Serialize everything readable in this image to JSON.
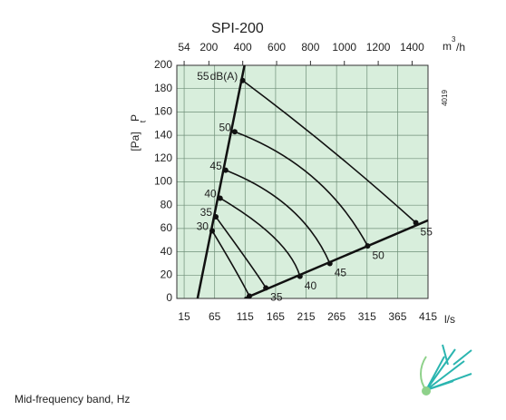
{
  "chart_data": {
    "type": "line",
    "title": "SPI-200",
    "xlabel": "l/s",
    "x2label_main": "m",
    "x2label_sup": "3",
    "x2label_unit": "/h",
    "ylabel_main": "P",
    "ylabel_sub": "t",
    "ylabel_unit": "[Pa]",
    "sound_unit": "dB(A)",
    "code": "4019",
    "footer": "Mid-frequency band, Hz",
    "xlim": [
      3,
      415
    ],
    "xticks": [
      15,
      65,
      115,
      165,
      215,
      265,
      315,
      365,
      415
    ],
    "x2lim": [
      10.8,
      1494
    ],
    "x2ticks": [
      54,
      200,
      400,
      600,
      800,
      1000,
      1200,
      1400
    ],
    "ylim": [
      0,
      200
    ],
    "yticks": [
      0,
      20,
      40,
      60,
      80,
      100,
      120,
      140,
      160,
      180,
      200
    ],
    "grid": true,
    "background": "#d8eedc",
    "color": "#111111",
    "system_lines": [
      {
        "x": [
          37,
          114
        ],
        "y": [
          0,
          200
        ]
      },
      {
        "x": [
          114,
          415
        ],
        "y": [
          0,
          67
        ]
      }
    ],
    "series": [
      {
        "name": "30",
        "end_label": false,
        "x": [
          61,
          97,
          122
        ],
        "y": [
          58,
          26,
          2
        ]
      },
      {
        "name": "35",
        "end_label": true,
        "x": [
          67,
          122,
          149
        ],
        "y": [
          70,
          30,
          9
        ]
      },
      {
        "name": "40",
        "end_label": true,
        "x": [
          74,
          163,
          205
        ],
        "y": [
          86,
          52,
          19
        ]
      },
      {
        "name": "45",
        "end_label": true,
        "x": [
          83,
          189,
          254
        ],
        "y": [
          110,
          77,
          30
        ]
      },
      {
        "name": "50",
        "end_label": true,
        "x": [
          98,
          226,
          316
        ],
        "y": [
          143,
          104,
          45
        ]
      },
      {
        "name": "55",
        "end_label": true,
        "x": [
          111,
          255,
          395
        ],
        "y": [
          187,
          128,
          65
        ]
      }
    ]
  }
}
